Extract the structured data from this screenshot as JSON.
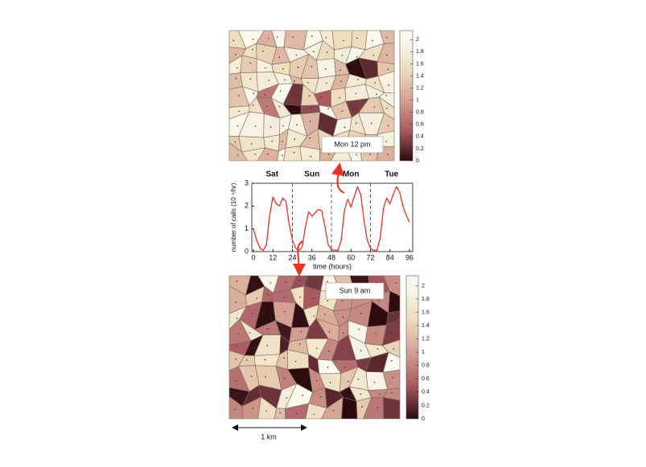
{
  "chart_data": [
    {
      "type": "map",
      "label": "Mon 12 pm",
      "colormap": [
        "#2b0a10",
        "#a9585f",
        "#d4a093",
        "#eedcbc",
        "#fbf9ee"
      ],
      "colorbar": {
        "ylim": [
          0,
          2.15
        ],
        "yticks": [
          0,
          0.2,
          0.4,
          0.6,
          0.8,
          1,
          1.2,
          1.4,
          1.6,
          1.8,
          2
        ]
      }
    },
    {
      "type": "line",
      "xlabel": "time (hours)",
      "ylabel": "number of calls (10 ⁴/hr)",
      "day_labels": [
        "Sat",
        "Sun",
        "Mon",
        "Tue"
      ],
      "day_boundaries": [
        24,
        48,
        72
      ],
      "x": [
        0,
        2,
        4,
        6,
        8,
        10,
        12,
        14,
        16,
        18,
        20,
        22,
        24,
        26,
        28,
        30,
        32,
        34,
        36,
        38,
        40,
        42,
        44,
        46,
        48,
        50,
        52,
        54,
        56,
        58,
        60,
        62,
        64,
        66,
        68,
        70,
        72,
        74,
        76,
        78,
        80,
        82,
        84,
        86,
        88,
        90,
        92,
        94,
        96
      ],
      "series": [
        {
          "color": "#e8321e",
          "values": [
            1.0,
            0.5,
            0.15,
            0.05,
            0.3,
            1.6,
            2.4,
            2.1,
            2.0,
            2.35,
            2.2,
            1.2,
            0.5,
            0.15,
            0.05,
            0.2,
            1.1,
            1.75,
            1.55,
            1.7,
            1.85,
            1.8,
            1.1,
            0.3,
            0.1,
            0.05,
            0.05,
            0.5,
            1.8,
            2.3,
            1.95,
            2.4,
            2.85,
            2.5,
            1.4,
            0.5,
            0.15,
            0.05,
            0.05,
            0.6,
            1.9,
            2.35,
            2.1,
            2.5,
            2.85,
            2.6,
            2.0,
            1.6,
            1.3
          ]
        }
      ],
      "xlim": [
        -1,
        98
      ],
      "xticks": [
        0,
        12,
        24,
        36,
        48,
        60,
        72,
        84,
        96
      ],
      "ylim": [
        0,
        3
      ],
      "yticks": [
        0,
        1,
        2,
        3
      ]
    },
    {
      "type": "map",
      "label": "Sun  9 am",
      "scale_label": "1 km",
      "colormap": [
        "#2b0a10",
        "#a9585f",
        "#d4a093",
        "#eedcbc",
        "#fbf9ee"
      ],
      "colorbar": {
        "ylim": [
          0,
          2.15
        ],
        "yticks": [
          0,
          0.2,
          0.4,
          0.6,
          0.8,
          1,
          1.2,
          1.4,
          1.6,
          1.8,
          2
        ]
      }
    }
  ]
}
